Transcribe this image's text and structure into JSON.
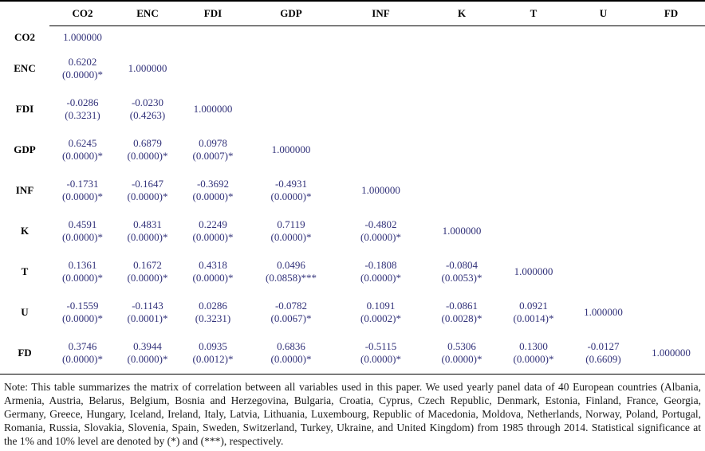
{
  "table": {
    "header": [
      "",
      "CO2",
      "ENC",
      "FDI",
      "GDP",
      "INF",
      "K",
      "T",
      "U",
      "FD"
    ],
    "rows": [
      {
        "label": "CO2",
        "cells": [
          {
            "v": "1.000000",
            "p": ""
          }
        ]
      },
      {
        "label": "ENC",
        "cells": [
          {
            "v": "0.6202",
            "p": "(0.0000)*"
          },
          {
            "v": "1.000000",
            "p": ""
          }
        ]
      },
      {
        "label": "FDI",
        "cells": [
          {
            "v": "-0.0286",
            "p": "(0.3231)"
          },
          {
            "v": "-0.0230",
            "p": "(0.4263)"
          },
          {
            "v": "1.000000",
            "p": ""
          }
        ]
      },
      {
        "label": "GDP",
        "cells": [
          {
            "v": "0.6245",
            "p": "(0.0000)*"
          },
          {
            "v": "0.6879",
            "p": "(0.0000)*"
          },
          {
            "v": "0.0978",
            "p": "(0.0007)*"
          },
          {
            "v": "1.000000",
            "p": ""
          }
        ]
      },
      {
        "label": "INF",
        "cells": [
          {
            "v": "-0.1731",
            "p": "(0.0000)*"
          },
          {
            "v": "-0.1647",
            "p": "(0.0000)*"
          },
          {
            "v": "-0.3692",
            "p": "(0.0000)*"
          },
          {
            "v": "-0.4931",
            "p": "(0.0000)*"
          },
          {
            "v": "1.000000",
            "p": ""
          }
        ]
      },
      {
        "label": "K",
        "cells": [
          {
            "v": "0.4591",
            "p": "(0.0000)*"
          },
          {
            "v": "0.4831",
            "p": "(0.0000)*"
          },
          {
            "v": "0.2249",
            "p": "(0.0000)*"
          },
          {
            "v": "0.7119",
            "p": "(0.0000)*"
          },
          {
            "v": "-0.4802",
            "p": "(0.0000)*"
          },
          {
            "v": "1.000000",
            "p": ""
          }
        ]
      },
      {
        "label": "T",
        "cells": [
          {
            "v": "0.1361",
            "p": "(0.0000)*"
          },
          {
            "v": "0.1672",
            "p": "(0.0000)*"
          },
          {
            "v": "0.4318",
            "p": "(0.0000)*"
          },
          {
            "v": "0.0496",
            "p": "(0.0858)***"
          },
          {
            "v": "-0.1808",
            "p": "(0.0000)*"
          },
          {
            "v": "-0.0804",
            "p": "(0.0053)*"
          },
          {
            "v": "1.000000",
            "p": ""
          }
        ]
      },
      {
        "label": "U",
        "cells": [
          {
            "v": "-0.1559",
            "p": "(0.0000)*"
          },
          {
            "v": "-0.1143",
            "p": "(0.0001)*"
          },
          {
            "v": "0.0286",
            "p": "(0.3231)"
          },
          {
            "v": "-0.0782",
            "p": "(0.0067)*"
          },
          {
            "v": "0.1091",
            "p": "(0.0002)*"
          },
          {
            "v": "-0.0861",
            "p": "(0.0028)*"
          },
          {
            "v": "0.0921",
            "p": "(0.0014)*"
          },
          {
            "v": "1.000000",
            "p": ""
          }
        ]
      },
      {
        "label": "FD",
        "cells": [
          {
            "v": "0.3746",
            "p": "(0.0000)*"
          },
          {
            "v": "0.3944",
            "p": "(0.0000)*"
          },
          {
            "v": "0.0935",
            "p": "(0.0012)*"
          },
          {
            "v": "0.6836",
            "p": "(0.0000)*"
          },
          {
            "v": "-0.5115",
            "p": "(0.0000)*"
          },
          {
            "v": "0.5306",
            "p": "(0.0000)*"
          },
          {
            "v": "0.1300",
            "p": "(0.0000)*"
          },
          {
            "v": "-0.0127",
            "p": "(0.6609)"
          },
          {
            "v": "1.000000",
            "p": ""
          }
        ]
      }
    ]
  },
  "note": "Note: This table summarizes the matrix of correlation between all variables used in this paper. We used yearly panel data of 40 European countries (Albania, Armenia, Austria, Belarus, Belgium, Bosnia and Herzegovina, Bulgaria, Croatia, Cyprus, Czech Republic, Denmark, Estonia, Finland, France, Georgia, Germany, Greece, Hungary, Iceland, Ireland, Italy, Latvia, Lithuania, Luxembourg, Republic of Macedonia, Moldova, Netherlands, Norway, Poland, Portugal, Romania, Russia, Slovakia, Slovenia, Spain, Sweden, Switzerland, Turkey, Ukraine, and United Kingdom) from 1985 through 2014. Statistical significance at the 1% and 10% level are denoted by (*) and (***), respectively.",
  "colors": {
    "rule": "#000000",
    "header_text": "#000000",
    "value_text": "#32327a",
    "note_text": "#1a1a1a"
  }
}
